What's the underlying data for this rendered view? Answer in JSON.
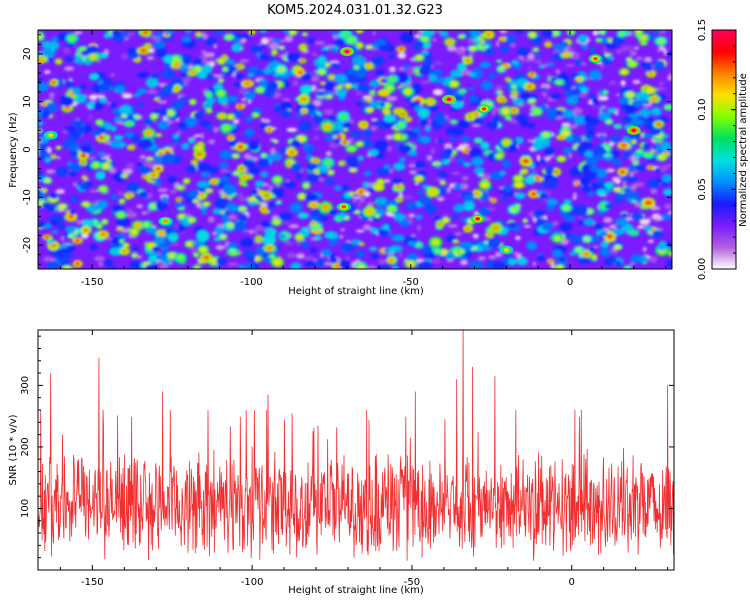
{
  "title": "KOM5.2024.031.01.32.G23",
  "chart_data": [
    {
      "type": "heatmap",
      "xlabel": "Height of straight line (km)",
      "ylabel": "Frequency (Hz)",
      "xlim": [
        -167,
        32
      ],
      "ylim": [
        -25,
        25
      ],
      "x_ticks": [
        -150,
        -100,
        -50,
        0
      ],
      "y_ticks": [
        -20,
        -10,
        0,
        10,
        20
      ],
      "colorbar": {
        "label": "Normalized spectral amplitude",
        "range": [
          0,
          0.15
        ],
        "ticks": [
          "0.00",
          "0.05",
          "0.10",
          "0.15"
        ],
        "colors": [
          "#ffffff",
          "#b060e0",
          "#7a1cff",
          "#1a1aff",
          "#0090ff",
          "#00e0e0",
          "#00e060",
          "#80ff00",
          "#ffe000",
          "#ff8000",
          "#ff0000",
          "#ff0060"
        ]
      },
      "background_color": "#7a1cff",
      "peaks": [
        {
          "x": -70,
          "y": 20.5,
          "value": 0.15
        },
        {
          "x": -38,
          "y": 10.5,
          "value": 0.15
        },
        {
          "x": -27,
          "y": 8.5,
          "value": 0.13
        },
        {
          "x": 20,
          "y": 4,
          "value": 0.15
        },
        {
          "x": 8,
          "y": 19,
          "value": 0.13
        },
        {
          "x": -71,
          "y": -12,
          "value": 0.13
        },
        {
          "x": -29,
          "y": -14.5,
          "value": 0.14
        },
        {
          "x": -127,
          "y": -15,
          "value": 0.12
        },
        {
          "x": -163,
          "y": 3,
          "value": 0.11
        },
        {
          "x": -20,
          "y": -21,
          "value": 0.11
        }
      ]
    },
    {
      "type": "line",
      "xlabel": "Height of straight line (km)",
      "ylabel": "SNR (10 * v/v)",
      "xlim": [
        -167,
        32
      ],
      "ylim": [
        0,
        390
      ],
      "x_ticks": [
        -150,
        -100,
        -50,
        0
      ],
      "y_ticks": [
        100,
        200,
        300
      ],
      "color": "#f03030",
      "baseline": 105,
      "typical_range": [
        20,
        220
      ],
      "peaks": [
        {
          "x": -163,
          "y": 320
        },
        {
          "x": -148,
          "y": 345
        },
        {
          "x": -128,
          "y": 290
        },
        {
          "x": -95,
          "y": 285
        },
        {
          "x": -49,
          "y": 290
        },
        {
          "x": -36,
          "y": 310
        },
        {
          "x": -34,
          "y": 390
        },
        {
          "x": -31,
          "y": 330
        },
        {
          "x": -24,
          "y": 315
        },
        {
          "x": 1,
          "y": 260
        },
        {
          "x": 30,
          "y": 300
        }
      ]
    }
  ]
}
